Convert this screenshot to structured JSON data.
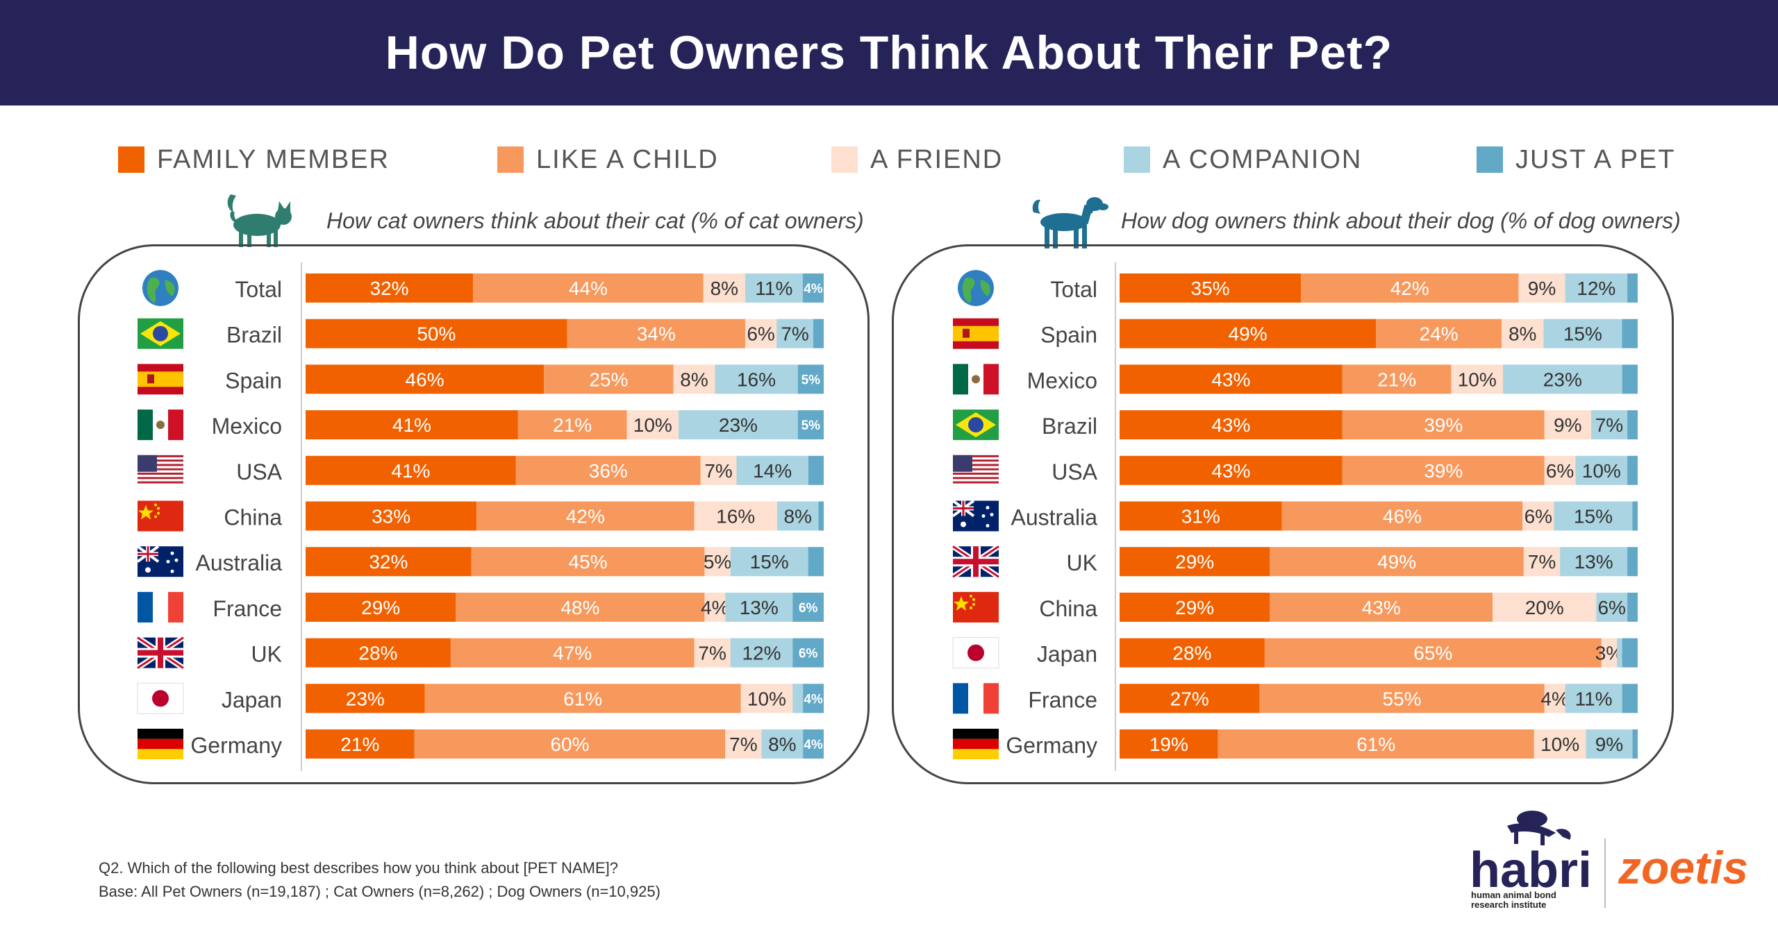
{
  "page": {
    "title": "How Do Pet Owners Think About Their Pet?",
    "footnote_q": "Q2. Which of the following best describes how you think about [PET NAME]?",
    "footnote_base": "Base: All Pet Owners (n=19,187) ; Cat Owners (n=8,262) ; Dog Owners (n=10,925)",
    "logo_habri": "habri",
    "logo_habri_sub1": "human animal bond",
    "logo_habri_sub2": "research institute",
    "logo_zoetis": "zoetis"
  },
  "legend": [
    {
      "label": "FAMILY MEMBER",
      "color": "#f26100"
    },
    {
      "label": "LIKE A CHILD",
      "color": "#f7985c"
    },
    {
      "label": "A FRIEND",
      "color": "#fde0cf"
    },
    {
      "label": "A COMPANION",
      "color": "#aad4e1"
    },
    {
      "label": "JUST A PET",
      "color": "#62a8c7"
    }
  ],
  "chart_data": [
    {
      "type": "bar",
      "orientation": "horizontal",
      "stacked": true,
      "title": "How cat owners think about their cat (% of cat owners)",
      "icon": "cat-icon",
      "series_names": [
        "FAMILY MEMBER",
        "LIKE A CHILD",
        "A FRIEND",
        "A COMPANION",
        "JUST A PET"
      ],
      "categories": [
        "Total",
        "Brazil",
        "Spain",
        "Mexico",
        "USA",
        "China",
        "Australia",
        "France",
        "UK",
        "Japan",
        "Germany"
      ],
      "flags": [
        "globe",
        "brazil",
        "spain",
        "mexico",
        "usa",
        "china",
        "australia",
        "france",
        "uk",
        "japan",
        "germany"
      ],
      "rows": [
        {
          "values": [
            32,
            44,
            8,
            11,
            4
          ],
          "labels": [
            "32%",
            "44%",
            "8%",
            "11%",
            "4%"
          ]
        },
        {
          "values": [
            50,
            34,
            6,
            7,
            2
          ],
          "labels": [
            "50%",
            "34%",
            "6%",
            "7%",
            ""
          ]
        },
        {
          "values": [
            46,
            25,
            8,
            16,
            5
          ],
          "labels": [
            "46%",
            "25%",
            "8%",
            "16%",
            "5%"
          ]
        },
        {
          "values": [
            41,
            21,
            10,
            23,
            5
          ],
          "labels": [
            "41%",
            "21%",
            "10%",
            "23%",
            "5%"
          ]
        },
        {
          "values": [
            41,
            36,
            7,
            14,
            3
          ],
          "labels": [
            "41%",
            "36%",
            "7%",
            "14%",
            ""
          ]
        },
        {
          "values": [
            33,
            42,
            16,
            8,
            1
          ],
          "labels": [
            "33%",
            "42%",
            "16%",
            "8%",
            ""
          ]
        },
        {
          "values": [
            32,
            45,
            5,
            15,
            3
          ],
          "labels": [
            "32%",
            "45%",
            "5%",
            "15%",
            ""
          ]
        },
        {
          "values": [
            29,
            48,
            4,
            13,
            6
          ],
          "labels": [
            "29%",
            "48%",
            "4%",
            "13%",
            "6%"
          ]
        },
        {
          "values": [
            28,
            47,
            7,
            12,
            6
          ],
          "labels": [
            "28%",
            "47%",
            "7%",
            "12%",
            "6%"
          ]
        },
        {
          "values": [
            23,
            61,
            10,
            2,
            4
          ],
          "labels": [
            "23%",
            "61%",
            "10%",
            "",
            "4%"
          ]
        },
        {
          "values": [
            21,
            60,
            7,
            8,
            4
          ],
          "labels": [
            "21%",
            "60%",
            "7%",
            "8%",
            "4%"
          ]
        }
      ],
      "xlim": [
        0,
        100
      ]
    },
    {
      "type": "bar",
      "orientation": "horizontal",
      "stacked": true,
      "title": "How dog owners think about their  dog (% of dog owners)",
      "icon": "dog-icon",
      "series_names": [
        "FAMILY MEMBER",
        "LIKE A CHILD",
        "A FRIEND",
        "A COMPANION",
        "JUST A PET"
      ],
      "categories": [
        "Total",
        "Spain",
        "Mexico",
        "Brazil",
        "USA",
        "Australia",
        "UK",
        "China",
        "Japan",
        "France",
        "Germany"
      ],
      "flags": [
        "globe",
        "spain",
        "mexico",
        "brazil",
        "usa",
        "australia",
        "uk",
        "china",
        "japan",
        "france",
        "germany"
      ],
      "rows": [
        {
          "values": [
            35,
            42,
            9,
            12,
            2
          ],
          "labels": [
            "35%",
            "42%",
            "9%",
            "12%",
            ""
          ]
        },
        {
          "values": [
            49,
            24,
            8,
            15,
            3
          ],
          "labels": [
            "49%",
            "24%",
            "8%",
            "15%",
            ""
          ]
        },
        {
          "values": [
            43,
            21,
            10,
            23,
            3
          ],
          "labels": [
            "43%",
            "21%",
            "10%",
            "23%",
            ""
          ]
        },
        {
          "values": [
            43,
            39,
            9,
            7,
            2
          ],
          "labels": [
            "43%",
            "39%",
            "9%",
            "7%",
            ""
          ]
        },
        {
          "values": [
            43,
            39,
            6,
            10,
            2
          ],
          "labels": [
            "43%",
            "39%",
            "6%",
            "10%",
            ""
          ]
        },
        {
          "values": [
            31,
            46,
            6,
            15,
            1
          ],
          "labels": [
            "31%",
            "46%",
            "6%",
            "15%",
            ""
          ]
        },
        {
          "values": [
            29,
            49,
            7,
            13,
            2
          ],
          "labels": [
            "29%",
            "49%",
            "7%",
            "13%",
            ""
          ]
        },
        {
          "values": [
            29,
            43,
            20,
            6,
            2
          ],
          "labels": [
            "29%",
            "43%",
            "20%",
            "6%",
            ""
          ]
        },
        {
          "values": [
            28,
            65,
            3,
            1,
            3
          ],
          "labels": [
            "28%",
            "65%",
            "3%",
            "",
            ""
          ]
        },
        {
          "values": [
            27,
            55,
            4,
            11,
            3
          ],
          "labels": [
            "27%",
            "55%",
            "4%",
            "11%",
            ""
          ]
        },
        {
          "values": [
            19,
            61,
            10,
            9,
            1
          ],
          "labels": [
            "19%",
            "61%",
            "10%",
            "9%",
            ""
          ]
        }
      ],
      "xlim": [
        0,
        100
      ]
    }
  ]
}
